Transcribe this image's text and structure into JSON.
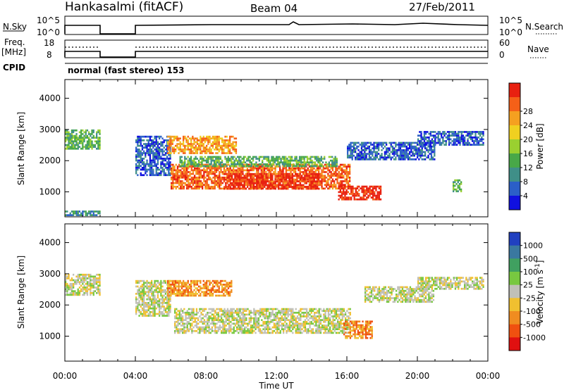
{
  "header": {
    "station": "Hankasalmi (fitACF)",
    "beam": "Beam 04",
    "date": "27/Feb/2011"
  },
  "summary_panels": {
    "nsky_label": "N.Sky",
    "nsky_ticks": [
      "10^5",
      "10^0"
    ],
    "nsearch_label": "N.Search",
    "nsearch_ticks": [
      "10^5",
      "10^0"
    ],
    "freq_label_1": "Freq.",
    "freq_label_2": "[MHz]",
    "freq_ticks": [
      "18",
      "8"
    ],
    "nave_label": "Nave",
    "nave_ticks": [
      "60",
      "0"
    ],
    "cpid_label": "CPID",
    "cpid_value": "normal (fast stereo) 153"
  },
  "chart_data": [
    {
      "type": "heatmap",
      "name": "power-panel",
      "ylabel": "Slant Range [km]",
      "xlabel": "",
      "x_ticks": [
        "00:00",
        "04:00",
        "08:00",
        "12:00",
        "16:00",
        "20:00",
        "00:00"
      ],
      "y_ticks": [
        1000,
        2000,
        3000,
        4000
      ],
      "ylim": [
        200,
        4600
      ],
      "xlim_hours": [
        0,
        24
      ],
      "colorbar": {
        "label": "Power [dB]",
        "ticks": [
          "4",
          "8",
          "12",
          "16",
          "20",
          "24",
          "28"
        ],
        "colors": [
          "#1010e0",
          "#2b5fc8",
          "#3f8f88",
          "#48a848",
          "#9ad030",
          "#f0d020",
          "#f5a020",
          "#f56018",
          "#e82010"
        ]
      },
      "regions": [
        {
          "t0": 0.0,
          "t1": 2.0,
          "r0": 2350,
          "r1": 3000,
          "level": 3
        },
        {
          "t0": 0.0,
          "t1": 2.0,
          "r0": 250,
          "r1": 400,
          "level": 2
        },
        {
          "t0": 4.0,
          "t1": 6.0,
          "r0": 1500,
          "r1": 2800,
          "level": 1
        },
        {
          "t0": 5.8,
          "t1": 9.8,
          "r0": 2200,
          "r1": 2800,
          "level": 6
        },
        {
          "t0": 6.0,
          "t1": 16.2,
          "r0": 1050,
          "r1": 1900,
          "level": 7
        },
        {
          "t0": 6.5,
          "t1": 15.5,
          "r0": 1800,
          "r1": 2150,
          "level": 3
        },
        {
          "t0": 9.0,
          "t1": 14.5,
          "r0": 1100,
          "r1": 1600,
          "level": 8
        },
        {
          "t0": 15.5,
          "t1": 18.0,
          "r0": 750,
          "r1": 1200,
          "level": 8
        },
        {
          "t0": 16.0,
          "t1": 21.0,
          "r0": 2000,
          "r1": 2600,
          "level": 1
        },
        {
          "t0": 20.0,
          "t1": 23.8,
          "r0": 2500,
          "r1": 2950,
          "level": 1
        },
        {
          "t0": 22.0,
          "t1": 22.5,
          "r0": 1000,
          "r1": 1400,
          "level": 3
        }
      ]
    },
    {
      "type": "heatmap",
      "name": "velocity-panel",
      "ylabel": "Slant Range [km]",
      "xlabel": "Time UT",
      "x_ticks": [
        "00:00",
        "04:00",
        "08:00",
        "12:00",
        "16:00",
        "20:00",
        "00:00"
      ],
      "y_ticks": [
        1000,
        2000,
        3000,
        4000
      ],
      "ylim": [
        200,
        4600
      ],
      "xlim_hours": [
        0,
        24
      ],
      "colorbar": {
        "label": "Velocity [m s^-1]",
        "ticks": [
          "1000",
          "500",
          "100",
          "25",
          "-25",
          "-100",
          "-500",
          "-1000"
        ],
        "colors": [
          "#2040c0",
          "#3a78a0",
          "#40a060",
          "#78c840",
          "#c0c0b8",
          "#f0c030",
          "#f08c20",
          "#f05010",
          "#e01010"
        ]
      },
      "regions": [
        {
          "t0": 0.0,
          "t1": 2.0,
          "r0": 2300,
          "r1": 3000,
          "level": 4
        },
        {
          "t0": 4.0,
          "t1": 6.0,
          "r0": 1600,
          "r1": 2800,
          "level": 4
        },
        {
          "t0": 5.8,
          "t1": 9.5,
          "r0": 2300,
          "r1": 2800,
          "level": 6
        },
        {
          "t0": 6.2,
          "t1": 16.2,
          "r0": 1050,
          "r1": 1900,
          "level": 4
        },
        {
          "t0": 15.8,
          "t1": 17.5,
          "r0": 900,
          "r1": 1500,
          "level": 6
        },
        {
          "t0": 17.0,
          "t1": 21.0,
          "r0": 2100,
          "r1": 2600,
          "level": 4
        },
        {
          "t0": 20.0,
          "t1": 23.8,
          "r0": 2500,
          "r1": 2900,
          "level": 4
        }
      ]
    }
  ]
}
